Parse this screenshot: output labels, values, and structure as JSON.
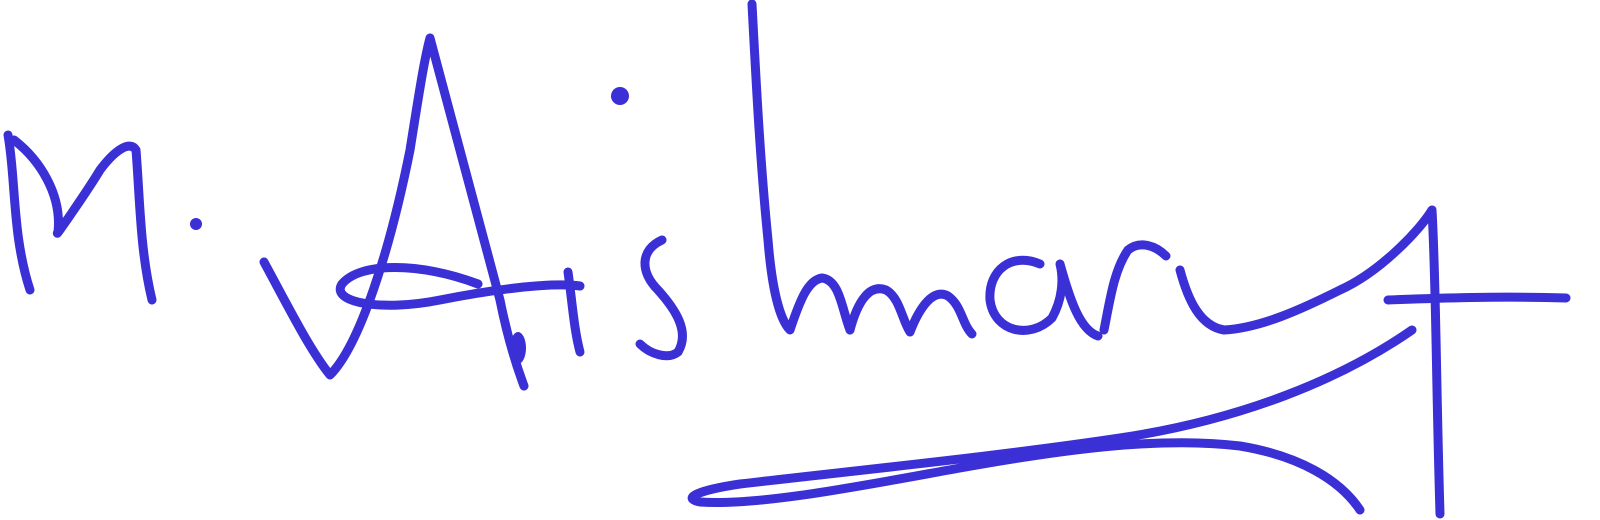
{
  "signature": {
    "text": "M. Aishwarya",
    "ink_color": "#3b2fd6",
    "background_color": "#ffffff"
  }
}
